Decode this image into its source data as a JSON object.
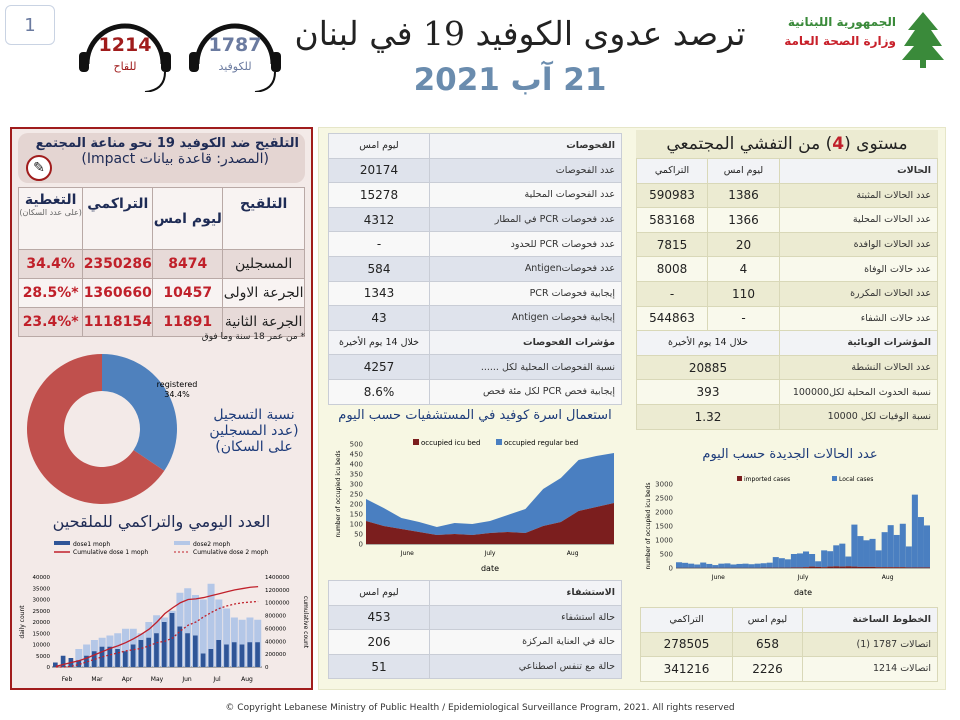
{
  "page_number": "1",
  "hotlines_header": [
    {
      "number": "1214",
      "label": "للقاح",
      "color": "#a01c1c"
    },
    {
      "number": "1787",
      "label": "للكوفيد",
      "color": "#6b7ba0"
    }
  ],
  "title": "ترصد عدوى الكوفيد 19 في لبنان",
  "date": "21 آب 2021",
  "logo": {
    "line1": "الجمهورية اللبنانية",
    "line2": "وزارة الصحة العامة"
  },
  "vaccination": {
    "title": "التلقيح ضد الكوفيد 19  نحو مناعة المجتمع",
    "source": "(المصدر: قاعدة بيانات Impact)",
    "headers": {
      "type": "التلقيح",
      "yesterday": "ليوم امس",
      "cumulative": "التراكمي",
      "coverage": "التغطية",
      "coverage_note": "(على عدد السكان)"
    },
    "rows": [
      {
        "label": "المسجلين",
        "yesterday": "8474",
        "cumulative": "2350286",
        "coverage": "34.4%"
      },
      {
        "label": "الجرعة الاولى",
        "yesterday": "10457",
        "cumulative": "1360660",
        "coverage": "*28.5%"
      },
      {
        "label": "الجرعة الثانية",
        "yesterday": "11891",
        "cumulative": "1118154",
        "coverage": "*23.4%"
      }
    ],
    "footnote": "* من عمر 18 سنة وما فوق",
    "donut_caption": "نسبة التسجيل (عدد المسجلين على السكان)",
    "chart_title": "العدد اليومي والتراكمي للملقحين"
  },
  "tests": {
    "header_label": "الفحوصات",
    "header_value": "ليوم امس",
    "rows": [
      {
        "label": "عدد الفحوصات",
        "value": "20174"
      },
      {
        "label": "عدد الفحوصات المحلية",
        "value": "15278"
      },
      {
        "label": "عدد فحوصات PCR في المطار",
        "value": "4312"
      },
      {
        "label": "عدد فحوصات PCR للحدود",
        "value": "-"
      },
      {
        "label": "عدد فحوصاتAntigen",
        "value": "584"
      },
      {
        "label": "إيجابية فحوصات PCR",
        "value": "1343"
      },
      {
        "label": "إيجابية فحوصات Antigen",
        "value": "43"
      }
    ],
    "indicators_label": "مؤشرات الفحوصات",
    "indicators_period": "خلال 14 يوم الأخيرة",
    "indicators": [
      {
        "label": "نسبة الفحوصات المحلية لكل ......",
        "value": "4257"
      },
      {
        "label": "إيجابية فحص PCR لكل مئة فحص",
        "value": "8.6%"
      }
    ]
  },
  "cases": {
    "title_pre": "مستوى (",
    "level": "4",
    "title_post": ") من التفشي المجتمعي",
    "headers": {
      "label": "الحالات",
      "yesterday": "ليوم امس",
      "cumulative": "التراكمي"
    },
    "rows": [
      {
        "label": "عدد الحالات المثبتة",
        "yesterday": "1386",
        "cumulative": "590983"
      },
      {
        "label": "عدد الحالات المحلية",
        "yesterday": "1366",
        "cumulative": "583168"
      },
      {
        "label": "عدد الحالات الوافدة",
        "yesterday": "20",
        "cumulative": "7815"
      },
      {
        "label": "عدد حالات الوفاة",
        "yesterday": "4",
        "cumulative": "8008"
      },
      {
        "label": "عدد الحالات المكررة",
        "yesterday": "110",
        "cumulative": "-"
      },
      {
        "label": "عدد حالات الشفاء",
        "yesterday": "-",
        "cumulative": "544863"
      }
    ],
    "indicators_label": "المؤشرات الوبائية",
    "indicators_period": "خلال 14 يوم الأخيرة",
    "indicators": [
      {
        "label": "عدد الحالات النشطة",
        "value": "20885"
      },
      {
        "label": "نسبة الحدوث المحلية لكل100000",
        "value": "393"
      },
      {
        "label": "نسبة الوفيات لكل 10000",
        "value": "1.32"
      }
    ]
  },
  "hospital": {
    "header_label": "الاستشفاء",
    "header_value": "ليوم امس",
    "rows": [
      {
        "label": "حالة استشفاء",
        "value": "453"
      },
      {
        "label": "حالة في العناية المركزة",
        "value": "206"
      },
      {
        "label": "حالة مع تنفس اصطناعي",
        "value": "51"
      }
    ],
    "chart_title": "استعمال اسرة كوفيد في المستشفيات حسب اليوم"
  },
  "hotlines": {
    "headers": {
      "label": "الخطوط الساخنة",
      "yesterday": "ليوم امس",
      "cumulative": "التراكمي"
    },
    "rows": [
      {
        "label": "اتصالات 1787 (1)",
        "yesterday": "658",
        "cumulative": "278505"
      },
      {
        "label": "اتصالات 1214",
        "yesterday": "2226",
        "cumulative": "341216"
      }
    ]
  },
  "new_cases_title": "عدد الحالات الجديدة حسب اليوم",
  "footer": "© Copyright Lebanese Ministry of Public Health / Epidemiological Surveillance Program, 2021. All rights reserved",
  "colors": {
    "red_frame": "#a01c1c",
    "icu": "#7b1e1e",
    "regular": "#4a7fc1",
    "dose1": "#2f5597",
    "dose2": "#b4c7e7",
    "donut_registered": "#4f81bd",
    "donut_rest": "#c0504d"
  },
  "chart_data": [
    {
      "type": "pie",
      "title": "",
      "slices": [
        {
          "name": "registered",
          "value": 34.4
        },
        {
          "name": "",
          "value": 65.6
        }
      ]
    },
    {
      "type": "area",
      "stacked": true,
      "xlabel": "date",
      "ylabel": "number of occupied icu beds",
      "ylim": [
        0,
        500
      ],
      "yticks": [
        0,
        50,
        100,
        150,
        200,
        250,
        300,
        350,
        400,
        450,
        500
      ],
      "month_labels": [
        "June",
        "July",
        "Aug"
      ],
      "x": [
        "Jun 1",
        "Jun 7",
        "Jun 13",
        "Jun 19",
        "Jun 25",
        "Jul 1",
        "Jul 7",
        "Jul 13",
        "Jul 19",
        "Jul 25",
        "Jul 31",
        "Aug 6",
        "Aug 12",
        "Aug 18",
        "Aug 20"
      ],
      "series": [
        {
          "name": "occupied icu bed",
          "values": [
            115,
            90,
            75,
            60,
            45,
            50,
            45,
            55,
            60,
            55,
            90,
            110,
            165,
            185,
            205
          ]
        },
        {
          "name": "occupied regular bed",
          "values": [
            110,
            90,
            55,
            50,
            40,
            55,
            55,
            60,
            85,
            120,
            185,
            220,
            255,
            255,
            250
          ]
        }
      ],
      "legend": "top"
    },
    {
      "type": "bar",
      "stacked": true,
      "xlabel": "date",
      "ylabel": "number of occupied icu beds",
      "ylim": [
        0,
        3000
      ],
      "yticks": [
        0,
        500,
        1000,
        1500,
        2000,
        2500,
        3000
      ],
      "month_labels": [
        "June",
        "July",
        "Aug"
      ],
      "series": [
        {
          "name": "imported cases",
          "values": [
            5,
            5,
            5,
            5,
            5,
            5,
            5,
            5,
            5,
            5,
            5,
            5,
            5,
            5,
            10,
            10,
            10,
            10,
            10,
            20,
            20,
            30,
            50,
            40,
            30,
            50,
            60,
            50,
            60,
            50,
            40,
            40,
            40,
            30,
            30,
            30,
            30,
            30,
            20,
            20,
            20,
            20
          ]
        },
        {
          "name": "Local cases",
          "values": [
            200,
            180,
            150,
            120,
            190,
            140,
            100,
            150,
            160,
            120,
            140,
            150,
            130,
            150,
            160,
            180,
            380,
            340,
            300,
            480,
            500,
            560,
            450,
            200,
            600,
            550,
            750,
            820,
            350,
            1500,
            1100,
            950,
            1000,
            600,
            1250,
            1500,
            1150,
            1550,
            750,
            2600,
            1800,
            1500
          ]
        }
      ],
      "legend": "top"
    },
    {
      "type": "bar+line",
      "xlabel": "",
      "ylabel": "daily count",
      "y2label": "cumulative count",
      "ylim": [
        0,
        40000
      ],
      "y2lim": [
        0,
        1400000
      ],
      "yticks": [
        0,
        5000,
        10000,
        15000,
        20000,
        25000,
        30000,
        35000,
        40000
      ],
      "y2ticks": [
        0,
        200000,
        400000,
        600000,
        800000,
        1000000,
        1200000,
        1400000
      ],
      "month_labels": [
        "Feb",
        "Mar",
        "Apr",
        "May",
        "Jun",
        "Jul",
        "Aug"
      ],
      "series": [
        {
          "name": "dose1  moph",
          "values": [
            2000,
            5000,
            4000,
            3000,
            5000,
            7000,
            9000,
            9000,
            8000,
            7000,
            10000,
            12000,
            13000,
            15000,
            20000,
            24000,
            18000,
            15000,
            14000,
            6000,
            8000,
            12000,
            10000,
            11000,
            10000,
            11000,
            11000
          ]
        },
        {
          "name": "dose2 moph",
          "values": [
            0,
            0,
            2000,
            8000,
            10000,
            12000,
            13000,
            14000,
            15000,
            17000,
            17000,
            15000,
            20000,
            23000,
            22000,
            25000,
            33000,
            35000,
            32000,
            30000,
            37000,
            30000,
            26000,
            22000,
            21000,
            22000,
            21000
          ]
        },
        {
          "name": "Cumulative dose 1 moph",
          "values": [
            10000,
            40000,
            70000,
            100000,
            140000,
            190000,
            240000,
            290000,
            330000,
            380000,
            440000,
            510000,
            590000,
            700000,
            830000,
            920000,
            1000000,
            1050000,
            1060000,
            1080000,
            1110000,
            1140000,
            1170000,
            1200000,
            1220000,
            1240000,
            1250000
          ]
        },
        {
          "name": "Cumulative dose 2 moph",
          "values": [
            0,
            0,
            10000,
            40000,
            80000,
            120000,
            160000,
            190000,
            220000,
            250000,
            270000,
            290000,
            330000,
            380000,
            400000,
            450000,
            560000,
            650000,
            700000,
            780000,
            850000,
            910000,
            950000,
            980000,
            1000000,
            1010000,
            1020000
          ]
        }
      ],
      "legend": "top"
    }
  ]
}
